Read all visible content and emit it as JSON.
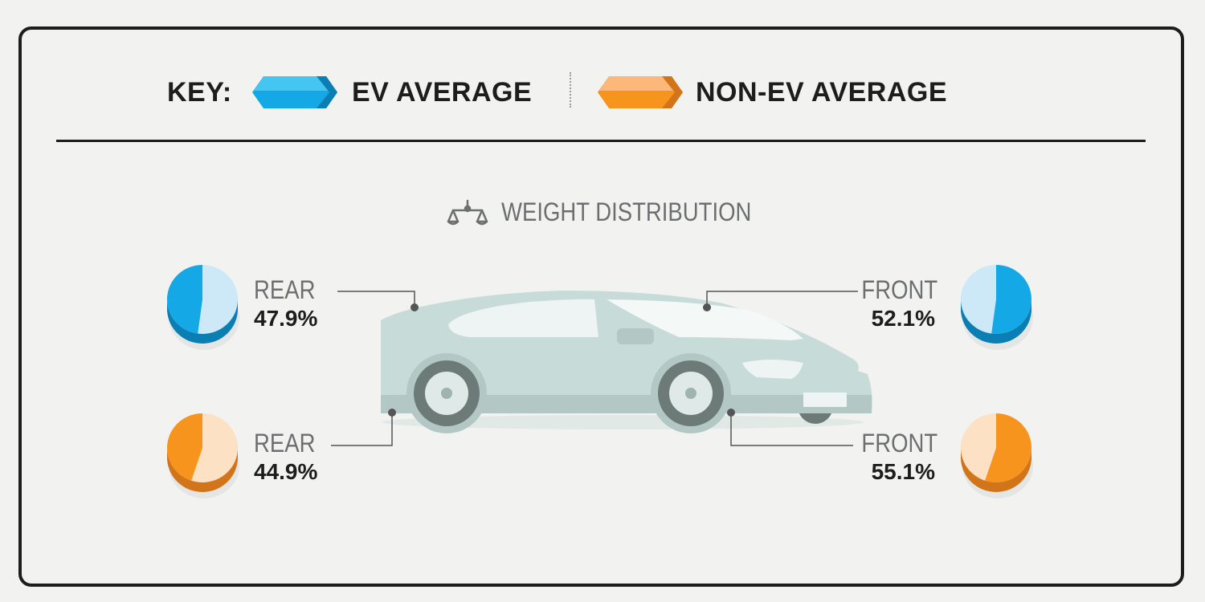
{
  "key": {
    "label": "KEY:",
    "items": [
      {
        "name": "EV AVERAGE",
        "color": "#1fb1ec",
        "top_color": "#3fc6f4",
        "side_color": "#0b7fb3"
      },
      {
        "name": "NON-EV AVERAGE",
        "color": "#f7941d",
        "top_color": "#fbb87a",
        "side_color": "#d1741a"
      }
    ]
  },
  "section": {
    "title": "WEIGHT DISTRIBUTION",
    "icon": "scale-icon"
  },
  "chart_data": {
    "type": "pie",
    "title": "WEIGHT DISTRIBUTION",
    "legend": [
      "EV AVERAGE",
      "NON-EV AVERAGE"
    ],
    "series": [
      {
        "name": "EV AVERAGE",
        "rear": 47.9,
        "front": 52.1,
        "rear_label": "REAR",
        "front_label": "FRONT",
        "rear_text": "47.9%",
        "front_text": "52.1%"
      },
      {
        "name": "NON-EV AVERAGE",
        "rear": 44.9,
        "front": 55.1,
        "rear_label": "REAR",
        "front_label": "FRONT",
        "rear_text": "44.9%",
        "front_text": "55.1%"
      }
    ]
  },
  "colors": {
    "ev": "#14a9e6",
    "ev_light": "#cde8f7",
    "ev_dark": "#0b7fb3",
    "nonev": "#f7941d",
    "nonev_light": "#fde1c4",
    "nonev_dark": "#d1741a",
    "car_body": "#c7dbd9",
    "car_dark": "#b3c8c5",
    "window": "#eef4f3",
    "tire": "#6c7b78"
  }
}
